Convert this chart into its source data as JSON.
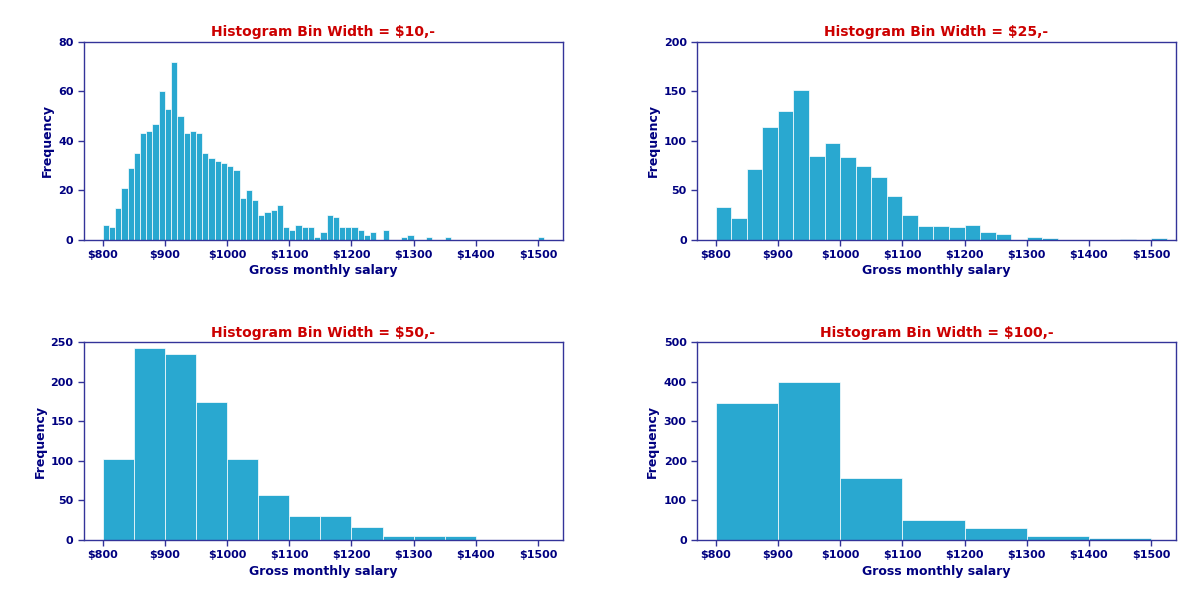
{
  "title_color": "#cc0000",
  "axis_label_color": "#000080",
  "tick_label_color": "#000080",
  "bar_color": "#29a8d0",
  "bar_edgecolor": "#ffffff",
  "spine_color": "#333399",
  "xlabel": "Gross monthly salary",
  "ylabel": "Frequency",
  "xlim": [
    770,
    1540
  ],
  "xtick_positions": [
    800,
    900,
    1000,
    1100,
    1200,
    1300,
    1400,
    1500
  ],
  "xtick_labels": [
    "$800",
    "$900",
    "$1000",
    "$1100",
    "$1200",
    "$1300",
    "$1400",
    "$1500"
  ],
  "plots": [
    {
      "title": "Histogram Bin Width = $10,-",
      "bin_width": 10,
      "ylim": [
        0,
        80
      ],
      "ytick_max": 80,
      "ytick_step": 20,
      "bin_starts": [
        800,
        810,
        820,
        830,
        840,
        850,
        860,
        870,
        880,
        890,
        900,
        910,
        920,
        930,
        940,
        950,
        960,
        970,
        980,
        990,
        1000,
        1010,
        1020,
        1030,
        1040,
        1050,
        1060,
        1070,
        1080,
        1090,
        1100,
        1110,
        1120,
        1130,
        1140,
        1150,
        1160,
        1170,
        1180,
        1190,
        1200,
        1210,
        1220,
        1230,
        1240,
        1250,
        1260,
        1270,
        1280,
        1290,
        1300,
        1310,
        1320,
        1330,
        1340,
        1350,
        1360,
        1370,
        1380,
        1400,
        1500
      ],
      "frequencies": [
        6,
        5,
        13,
        21,
        29,
        35,
        43,
        44,
        47,
        60,
        53,
        72,
        50,
        43,
        44,
        43,
        35,
        33,
        32,
        31,
        30,
        28,
        17,
        20,
        16,
        10,
        11,
        12,
        14,
        5,
        4,
        6,
        5,
        5,
        1,
        3,
        10,
        9,
        5,
        5,
        5,
        4,
        2,
        3,
        0,
        4,
        0,
        0,
        1,
        2,
        0,
        0,
        1,
        0,
        0,
        1,
        0,
        0,
        0,
        0,
        1
      ]
    },
    {
      "title": "Histogram Bin Width = $25,-",
      "bin_width": 25,
      "ylim": [
        0,
        200
      ],
      "ytick_max": 200,
      "ytick_step": 50,
      "bin_starts": [
        800,
        825,
        850,
        875,
        900,
        925,
        950,
        975,
        1000,
        1025,
        1050,
        1075,
        1100,
        1125,
        1150,
        1175,
        1200,
        1225,
        1250,
        1275,
        1300,
        1325,
        1375,
        1450,
        1500
      ],
      "frequencies": [
        33,
        22,
        71,
        114,
        130,
        151,
        85,
        98,
        84,
        75,
        63,
        44,
        25,
        14,
        14,
        13,
        15,
        8,
        6,
        0,
        3,
        2,
        0,
        1,
        2
      ]
    },
    {
      "title": "Histogram Bin Width = $50,-",
      "bin_width": 50,
      "ylim": [
        0,
        250
      ],
      "ytick_max": 250,
      "ytick_step": 50,
      "bin_starts": [
        800,
        850,
        900,
        950,
        1000,
        1050,
        1100,
        1150,
        1200,
        1250,
        1300,
        1350
      ],
      "frequencies": [
        102,
        243,
        235,
        174,
        103,
        57,
        30,
        30,
        17,
        5,
        5,
        5
      ]
    },
    {
      "title": "Histogram Bin Width = $100,-",
      "bin_width": 100,
      "ylim": [
        0,
        500
      ],
      "ytick_max": 500,
      "ytick_step": 100,
      "bin_starts": [
        800,
        900,
        1000,
        1100,
        1200,
        1300,
        1400
      ],
      "frequencies": [
        347,
        401,
        157,
        50,
        30,
        10,
        5
      ]
    }
  ]
}
